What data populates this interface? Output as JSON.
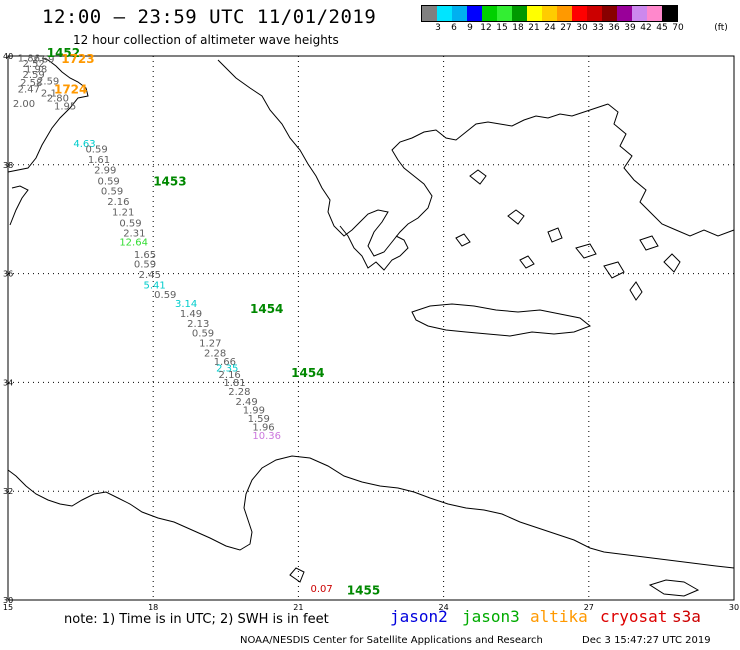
{
  "header": {
    "title": "12:00 – 23:59 UTC 11/01/2019",
    "subtitle": "12 hour collection of altimeter wave heights"
  },
  "legend": {
    "colors": [
      "#808080",
      "#00e5ff",
      "#00b0f0",
      "#0000ff",
      "#00d000",
      "#33ee33",
      "#009900",
      "#ffff00",
      "#ffcc00",
      "#ff9900",
      "#ff0000",
      "#cc0000",
      "#880000",
      "#990099",
      "#cc88ee",
      "#ff88cc",
      "#000000"
    ],
    "labels": [
      "3",
      "6",
      "9",
      "12",
      "15",
      "18",
      "21",
      "24",
      "27",
      "30",
      "33",
      "36",
      "39",
      "42",
      "45",
      "70"
    ],
    "unit": "(ft)"
  },
  "map": {
    "lat_labels": [
      "40",
      "38",
      "36",
      "34",
      "32",
      "30"
    ],
    "lon_labels": [
      "15",
      "18",
      "21",
      "24",
      "27",
      "30"
    ]
  },
  "track_values": [
    {
      "v": "1.86",
      "c": "#606060",
      "lon": 15.2,
      "lat": 39.9
    },
    {
      "v": "2.69",
      "c": "#606060",
      "lon": 15.5,
      "lat": 39.88
    },
    {
      "v": "2.52",
      "c": "#606060",
      "lon": 15.3,
      "lat": 39.8
    },
    {
      "v": "1.98",
      "c": "#606060",
      "lon": 15.35,
      "lat": 39.7
    },
    {
      "v": "2.59",
      "c": "#606060",
      "lon": 15.3,
      "lat": 39.6
    },
    {
      "v": "2.59",
      "c": "#606060",
      "lon": 15.6,
      "lat": 39.48
    },
    {
      "v": "2.58",
      "c": "#606060",
      "lon": 15.25,
      "lat": 39.45
    },
    {
      "v": "2.47",
      "c": "#606060",
      "lon": 15.2,
      "lat": 39.33
    },
    {
      "v": "2.1",
      "c": "#606060",
      "lon": 15.68,
      "lat": 39.26
    },
    {
      "v": "2.80",
      "c": "#606060",
      "lon": 15.8,
      "lat": 39.16
    },
    {
      "v": "2.00",
      "c": "#606060",
      "lon": 15.1,
      "lat": 39.06
    },
    {
      "v": "1.95",
      "c": "#606060",
      "lon": 15.95,
      "lat": 39.02
    },
    {
      "v": "4.63",
      "c": "#00cccc",
      "lon": 16.35,
      "lat": 38.33
    },
    {
      "v": "0.59",
      "c": "#606060",
      "lon": 16.6,
      "lat": 38.23
    },
    {
      "v": "1.61",
      "c": "#606060",
      "lon": 16.65,
      "lat": 38.03
    },
    {
      "v": "2.99",
      "c": "#606060",
      "lon": 16.78,
      "lat": 37.84
    },
    {
      "v": "0.59",
      "c": "#606060",
      "lon": 16.85,
      "lat": 37.64
    },
    {
      "v": "0.59",
      "c": "#606060",
      "lon": 16.92,
      "lat": 37.45
    },
    {
      "v": "2.16",
      "c": "#606060",
      "lon": 17.05,
      "lat": 37.26
    },
    {
      "v": "1.21",
      "c": "#606060",
      "lon": 17.15,
      "lat": 37.07
    },
    {
      "v": "0.59",
      "c": "#606060",
      "lon": 17.3,
      "lat": 36.87
    },
    {
      "v": "2.31",
      "c": "#606060",
      "lon": 17.38,
      "lat": 36.68
    },
    {
      "v": "12.64",
      "c": "#33dd33",
      "lon": 17.3,
      "lat": 36.52
    },
    {
      "v": "1.65",
      "c": "#606060",
      "lon": 17.6,
      "lat": 36.29
    },
    {
      "v": "0.59",
      "c": "#606060",
      "lon": 17.6,
      "lat": 36.11
    },
    {
      "v": "2.45",
      "c": "#606060",
      "lon": 17.7,
      "lat": 35.92
    },
    {
      "v": "5.41",
      "c": "#00cccc",
      "lon": 17.8,
      "lat": 35.73
    },
    {
      "v": "0.59",
      "c": "#606060",
      "lon": 18.02,
      "lat": 35.55
    },
    {
      "v": "3.14",
      "c": "#00cccc",
      "lon": 18.45,
      "lat": 35.39
    },
    {
      "v": "1.49",
      "c": "#606060",
      "lon": 18.55,
      "lat": 35.2
    },
    {
      "v": "2.13",
      "c": "#606060",
      "lon": 18.7,
      "lat": 35.02
    },
    {
      "v": "0.59",
      "c": "#606060",
      "lon": 18.8,
      "lat": 34.84
    },
    {
      "v": "1.27",
      "c": "#606060",
      "lon": 18.95,
      "lat": 34.66
    },
    {
      "v": "2.28",
      "c": "#606060",
      "lon": 19.05,
      "lat": 34.48
    },
    {
      "v": "1.66",
      "c": "#606060",
      "lon": 19.25,
      "lat": 34.32
    },
    {
      "v": "2.35",
      "c": "#00cccc",
      "lon": 19.3,
      "lat": 34.2
    },
    {
      "v": "2.16",
      "c": "#606060",
      "lon": 19.35,
      "lat": 34.08
    },
    {
      "v": "1.81",
      "c": "#606060",
      "lon": 19.45,
      "lat": 33.93
    },
    {
      "v": "2.28",
      "c": "#606060",
      "lon": 19.55,
      "lat": 33.77
    },
    {
      "v": "2.49",
      "c": "#606060",
      "lon": 19.7,
      "lat": 33.58
    },
    {
      "v": "1.99",
      "c": "#606060",
      "lon": 19.85,
      "lat": 33.43
    },
    {
      "v": "1.59",
      "c": "#606060",
      "lon": 19.95,
      "lat": 33.27
    },
    {
      "v": "1.96",
      "c": "#606060",
      "lon": 20.05,
      "lat": 33.12
    },
    {
      "v": "10.36",
      "c": "#cc77dd",
      "lon": 20.05,
      "lat": 32.96
    },
    {
      "v": "0.07",
      "c": "#cc0000",
      "lon": 21.25,
      "lat": 30.15
    }
  ],
  "times": [
    {
      "t": "1452",
      "c": "#008800",
      "lon": 15.8,
      "lat": 39.98
    },
    {
      "t": "1723",
      "c": "#ff9900",
      "lon": 16.1,
      "lat": 39.87
    },
    {
      "t": "1724",
      "c": "#ff9900",
      "lon": 15.95,
      "lat": 39.31
    },
    {
      "t": "1453",
      "c": "#008800",
      "lon": 18.0,
      "lat": 37.62
    },
    {
      "t": "1454",
      "c": "#008800",
      "lon": 20.0,
      "lat": 35.28
    },
    {
      "t": "1454",
      "c": "#008800",
      "lon": 20.85,
      "lat": 34.1
    },
    {
      "t": "1455",
      "c": "#008800",
      "lon": 22.0,
      "lat": 30.1
    }
  ],
  "satellites": [
    {
      "name": "jason2",
      "color": "#0000dd"
    },
    {
      "name": "jason3",
      "color": "#00aa00"
    },
    {
      "name": "altika",
      "color": "#ff9900"
    },
    {
      "name": "cryosat",
      "color": "#dd0000"
    },
    {
      "name": "s3a",
      "color": "#cc0000"
    }
  ],
  "footer": {
    "note": "note:  1) Time is in UTC;  2) SWH is in feet",
    "credit": "NOAA/NESDIS Center for Satellite Applications and Research",
    "timestamp": "Dec  3 15:47:27 UTC 2019"
  }
}
